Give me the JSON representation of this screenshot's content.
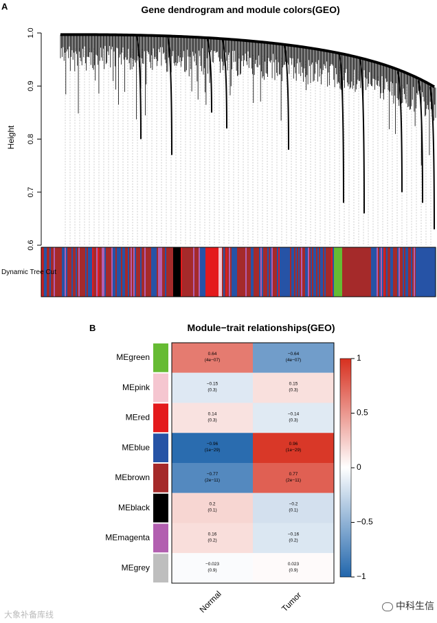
{
  "panel_a": {
    "letter": "A",
    "title": "Gene dendrogram and module colors(GEO)",
    "ylabel": "Height",
    "yticks": [
      "1.0",
      "0.9",
      "0.8",
      "0.7",
      "0.6"
    ],
    "color_bar_label": "Dynamic Tree Cut"
  },
  "panel_b": {
    "letter": "B",
    "title": "Module−trait relationships(GEO)",
    "legend_ticks": [
      "1",
      "0.5",
      "0",
      "−0.5",
      "−1"
    ]
  },
  "colors": {
    "negative": "#2166ac",
    "neutral": "#ffffff",
    "positive": "#d7301f",
    "module_green": "#66bb33",
    "module_pink": "#f5c6d0",
    "module_red": "#e41a1c",
    "module_blue": "#2653a6",
    "module_brown": "#a52a2a",
    "module_black": "#000000",
    "module_magenta": "#b25fb0",
    "module_grey": "#bebebe"
  },
  "chart_data": [
    {
      "type": "dendrogram",
      "title": "Gene dendrogram and module colors(GEO)",
      "ylabel": "Height",
      "ylim": [
        0.6,
        1.0
      ],
      "yticks": [
        1.0,
        0.9,
        0.8,
        0.7,
        0.6
      ],
      "color_bar": "Dynamic Tree Cut"
    },
    {
      "type": "heatmap",
      "title": "Module−trait relationships(GEO)",
      "columns": [
        "Normal",
        "Tumor"
      ],
      "rows": [
        {
          "module": "MEgreen",
          "color": "#66bb33",
          "values": [
            0.64,
            -0.64
          ],
          "labels": [
            "0.64",
            "−0.64"
          ],
          "pvals": [
            "(4e−07)",
            "(4e−07)"
          ]
        },
        {
          "module": "MEpink",
          "color": "#f5c6d0",
          "values": [
            -0.15,
            0.15
          ],
          "labels": [
            "−0.15",
            "0.15"
          ],
          "pvals": [
            "(0.3)",
            "(0.3)"
          ]
        },
        {
          "module": "MEred",
          "color": "#e41a1c",
          "values": [
            0.14,
            -0.14
          ],
          "labels": [
            "0.14",
            "−0.14"
          ],
          "pvals": [
            "(0.3)",
            "(0.3)"
          ]
        },
        {
          "module": "MEblue",
          "color": "#2653a6",
          "values": [
            -0.96,
            0.96
          ],
          "labels": [
            "−0.96",
            "0.96"
          ],
          "pvals": [
            "(1e−29)",
            "(1e−29)"
          ]
        },
        {
          "module": "MEbrown",
          "color": "#a52a2a",
          "values": [
            -0.77,
            0.77
          ],
          "labels": [
            "−0.77",
            "0.77"
          ],
          "pvals": [
            "(2e−11)",
            "(2e−11)"
          ]
        },
        {
          "module": "MEblack",
          "color": "#000000",
          "values": [
            0.2,
            -0.2
          ],
          "labels": [
            "0.2",
            "−0.2"
          ],
          "pvals": [
            "(0.1)",
            "(0.1)"
          ]
        },
        {
          "module": "MEmagenta",
          "color": "#b25fb0",
          "values": [
            0.16,
            -0.16
          ],
          "labels": [
            "0.16",
            "−0.16"
          ],
          "pvals": [
            "(0.2)",
            "(0.2)"
          ]
        },
        {
          "module": "MEgrey",
          "color": "#bebebe",
          "values": [
            -0.023,
            0.023
          ],
          "labels": [
            "−0.023",
            "0.023"
          ],
          "pvals": [
            "(0.9)",
            "(0.9)"
          ]
        }
      ],
      "colorscale_range": [
        -1,
        1
      ],
      "legend_ticks": [
        1,
        0.5,
        0,
        -0.5,
        -1
      ]
    }
  ],
  "watermarks": {
    "left": "大象补备库线",
    "right": "中科生信"
  }
}
